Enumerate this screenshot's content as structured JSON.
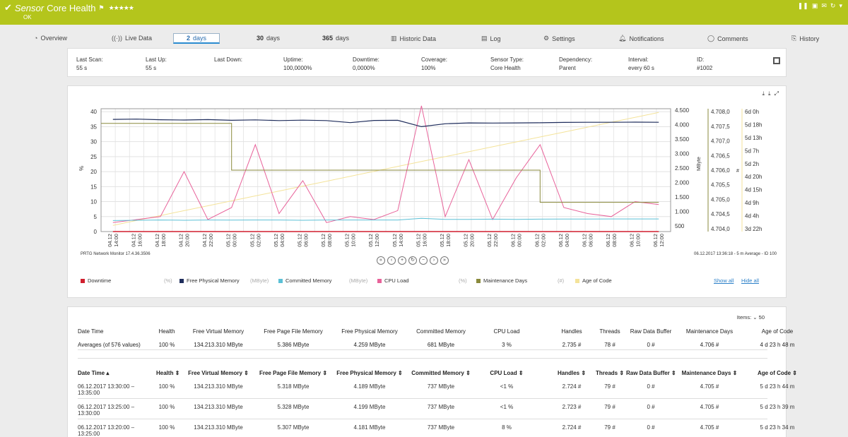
{
  "header": {
    "title_italic": "Sensor",
    "title": "Core Health",
    "status": "OK",
    "stars": "★★★★★"
  },
  "tabs": [
    {
      "label": "Overview"
    },
    {
      "label": "Live Data"
    },
    {
      "num": "2",
      "label": "days"
    },
    {
      "num": "30",
      "label": "days"
    },
    {
      "num": "365",
      "label": "days"
    },
    {
      "label": "Historic Data"
    },
    {
      "label": "Log"
    },
    {
      "label": "Settings"
    },
    {
      "label": "Notifications"
    },
    {
      "label": "Comments"
    },
    {
      "label": "History"
    }
  ],
  "info": [
    {
      "label": "Last Scan:",
      "value": "55 s"
    },
    {
      "label": "Last Up:",
      "value": "55 s"
    },
    {
      "label": "Last Down:",
      "value": ""
    },
    {
      "label": "Uptime:",
      "value": "100,0000%"
    },
    {
      "label": "Downtime:",
      "value": "0,0000%"
    },
    {
      "label": "Coverage:",
      "value": "100%"
    },
    {
      "label": "Sensor Type:",
      "value": "Core Health"
    },
    {
      "label": "Dependency:",
      "value": "Parent"
    },
    {
      "label": "Interval:",
      "value": "every 60 s"
    },
    {
      "label": "ID:",
      "value": "#1002"
    }
  ],
  "chart_data": {
    "type": "line",
    "footer_left": "PRTG Network Monitor 17.4.36.3506",
    "footer_right": "06.12.2017 13:36:18 - 5 m Average - ID 100",
    "y_left": {
      "label": "%",
      "ticks": [
        "0",
        "5",
        "10",
        "15",
        "20",
        "25",
        "30",
        "35",
        "40"
      ],
      "range": [
        0,
        41
      ]
    },
    "y_mbyte": {
      "label": "MByte",
      "ticks": [
        "500",
        "1.000",
        "1.500",
        "2.000",
        "2.500",
        "3.000",
        "3.500",
        "4.000",
        "4.500"
      ],
      "range": [
        300,
        4550
      ]
    },
    "y_days": {
      "label": "#",
      "ticks": [
        "4.704,0",
        "4.704,5",
        "4.705,0",
        "4.705,5",
        "4.706,0",
        "4.706,5",
        "4.707,0",
        "4.707,5",
        "4.708,0"
      ],
      "range": [
        4703.9,
        4708.1
      ]
    },
    "y_age": {
      "ticks": [
        "3d 22h",
        "4d 4h",
        "4d 9h",
        "4d 15h",
        "4d 20h",
        "5d 2h",
        "5d 7h",
        "5d 13h",
        "5d 18h",
        "6d 0h"
      ]
    },
    "x_ticks": [
      "04.12 14:00",
      "04.12 16:00",
      "04.12 18:00",
      "04.12 20:00",
      "04.12 22:00",
      "05.12 00:00",
      "05.12 02:00",
      "05.12 04:00",
      "05.12 06:00",
      "05.12 08:00",
      "05.12 10:00",
      "05.12 12:00",
      "05.12 14:00",
      "05.12 16:00",
      "05.12 18:00",
      "05.12 20:00",
      "05.12 22:00",
      "06.12 00:00",
      "06.12 02:00",
      "06.12 04:00",
      "06.12 06:00",
      "06.12 08:00",
      "06.12 10:00",
      "06.12 12:00"
    ],
    "series": [
      {
        "name": "Free Physical Memory",
        "unit": "MByte",
        "color": "#1f2d5c",
        "values": [
          4180,
          4190,
          4170,
          4160,
          4175,
          4150,
          4165,
          4140,
          4155,
          4140,
          4070,
          4145,
          4150,
          3930,
          4030,
          4060,
          4055,
          4060,
          4065,
          4075,
          4080,
          4080,
          4085,
          4080
        ]
      },
      {
        "name": "Committed Memory",
        "unit": "MByte",
        "color": "#5bc0d6",
        "values": [
          680,
          690,
          700,
          690,
          700,
          695,
          700,
          700,
          690,
          700,
          700,
          700,
          700,
          760,
          720,
          720,
          730,
          720,
          730,
          735,
          735,
          737,
          737,
          737
        ]
      },
      {
        "name": "CPU Load",
        "unit": "%",
        "color": "#e8629a",
        "values": [
          3,
          4,
          5,
          20,
          4,
          8,
          29,
          6,
          17,
          3,
          5,
          4,
          7,
          42,
          5,
          24,
          4,
          18,
          29,
          8,
          6,
          5,
          10,
          9
        ]
      },
      {
        "name": "Maintenance Days",
        "unit": "#",
        "color": "#8a8a3c",
        "values": [
          4707.6,
          4707.6,
          4707.6,
          4707.6,
          4707.6,
          4706.0,
          4706.0,
          4706.0,
          4706.0,
          4706.0,
          4706.0,
          4706.0,
          4706.0,
          4706.0,
          4706.0,
          4706.0,
          4706.0,
          4706.0,
          4704.9,
          4704.9,
          4704.9,
          4704.9,
          4704.9,
          4704.9
        ]
      },
      {
        "name": "Age of Code",
        "unit": "",
        "color": "#f4e39a",
        "values": [
          0.05,
          0.09,
          0.13,
          0.17,
          0.21,
          0.25,
          0.29,
          0.33,
          0.37,
          0.41,
          0.45,
          0.49,
          0.53,
          0.57,
          0.61,
          0.65,
          0.69,
          0.73,
          0.77,
          0.81,
          0.85,
          0.89,
          0.93,
          0.97
        ]
      },
      {
        "name": "Downtime",
        "unit": "%",
        "color": "#d01f2e",
        "values": [
          0,
          0,
          0,
          0,
          0,
          0,
          0,
          0,
          0,
          0,
          0,
          0,
          0,
          0,
          0,
          0,
          0,
          0,
          0,
          0,
          0,
          0,
          0,
          0
        ]
      }
    ]
  },
  "legend": [
    {
      "name": "Downtime",
      "unit": "(%)",
      "color": "#d01f2e"
    },
    {
      "name": "Free Physical Memory",
      "unit": "(MByte)",
      "color": "#1f2d5c"
    },
    {
      "name": "Committed Memory",
      "unit": "(MByte)",
      "color": "#5bc0d6"
    },
    {
      "name": "CPU Load",
      "unit": "(%)",
      "color": "#e8629a"
    },
    {
      "name": "Maintenance Days",
      "unit": "(#)",
      "color": "#8a8a3c"
    },
    {
      "name": "Age of Code",
      "unit": "",
      "color": "#f4e39a"
    }
  ],
  "legend_links": {
    "show": "Show all",
    "hide": "Hide all"
  },
  "table": {
    "items_label": "Items:",
    "items_value": "50",
    "avg_headers": [
      "Date Time",
      "Health",
      "Free Virtual Memory",
      "Free Page File Memory",
      "Free Physical Memory",
      "Committed Memory",
      "CPU Load",
      "Handles",
      "Threads",
      "Raw Data Buffer",
      "Maintenance Days",
      "Age of Code"
    ],
    "avg_row": [
      "Averages (of 576 values)",
      "100 %",
      "134.213.310 MByte",
      "5.386 MByte",
      "4.259 MByte",
      "681 MByte",
      "3 %",
      "2.735 #",
      "78 #",
      "0 #",
      "4.706 #",
      "4 d 23 h 48 m"
    ],
    "headers": [
      "Date Time",
      "Health",
      "Free Virtual Memory",
      "Free Page File Memory",
      "Free Physical Memory",
      "Committed Memory",
      "CPU Load",
      "Handles",
      "Threads",
      "Raw Data Buffer",
      "Maintenance Days",
      "Age of Code"
    ],
    "rows": [
      [
        "06.12.2017 13:30:00 – 13:35:00",
        "100 %",
        "134.213.310 MByte",
        "5.318 MByte",
        "4.189 MByte",
        "737 MByte",
        "<1 %",
        "2.724 #",
        "79 #",
        "0 #",
        "4.705 #",
        "5 d 23 h 44 m"
      ],
      [
        "06.12.2017 13:25:00 – 13:30:00",
        "100 %",
        "134.213.310 MByte",
        "5.328 MByte",
        "4.199 MByte",
        "737 MByte",
        "<1 %",
        "2.723 #",
        "79 #",
        "0 #",
        "4.705 #",
        "5 d 23 h 39 m"
      ],
      [
        "06.12.2017 13:20:00 – 13:25:00",
        "100 %",
        "134.213.310 MByte",
        "5.307 MByte",
        "4.181 MByte",
        "737 MByte",
        "8 %",
        "2.724 #",
        "79 #",
        "0 #",
        "4.705 #",
        "5 d 23 h 34 m"
      ]
    ]
  }
}
